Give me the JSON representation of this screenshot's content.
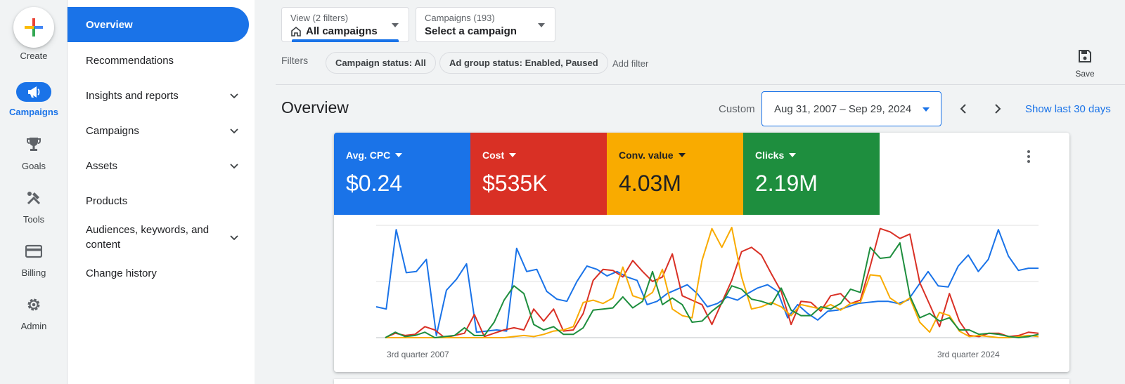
{
  "rail": {
    "create_label": "Create",
    "items": [
      {
        "label": "Campaigns",
        "icon": "megaphone-icon"
      },
      {
        "label": "Goals",
        "icon": "trophy-icon"
      },
      {
        "label": "Tools",
        "icon": "tools-icon"
      },
      {
        "label": "Billing",
        "icon": "credit-card-icon"
      },
      {
        "label": "Admin",
        "icon": "gear-icon"
      }
    ]
  },
  "nav": {
    "items": [
      {
        "label": "Overview"
      },
      {
        "label": "Recommendations"
      },
      {
        "label": "Insights and reports"
      },
      {
        "label": "Campaigns"
      },
      {
        "label": "Assets"
      },
      {
        "label": "Products"
      },
      {
        "label": "Audiences, keywords, and content"
      },
      {
        "label": "Change history"
      }
    ]
  },
  "header": {
    "view_small": "View (2 filters)",
    "view_value": "All campaigns",
    "campaigns_small": "Campaigns (193)",
    "campaigns_value": "Select a campaign"
  },
  "filters": {
    "label": "Filters",
    "chips": [
      "Campaign status: All",
      "Ad group status: Enabled, Paused"
    ],
    "add_filter": "Add filter",
    "save_label": "Save"
  },
  "overview": {
    "title": "Overview",
    "custom_label": "Custom",
    "date_range": "Aug 31, 2007 – Sep 29, 2024",
    "show_last": "Show last 30 days"
  },
  "metrics": [
    {
      "name": "Avg. CPC",
      "value": "$0.24",
      "color": "#1a73e8",
      "text_color": "#ffffff"
    },
    {
      "name": "Cost",
      "value": "$535K",
      "color": "#d93025",
      "text_color": "#ffffff"
    },
    {
      "name": "Conv. value",
      "value": "4.03M",
      "color": "#f9ab00",
      "text_color": "#202124"
    },
    {
      "name": "Clicks",
      "value": "2.19M",
      "color": "#1e8e3e",
      "text_color": "#ffffff"
    }
  ],
  "chart_data": {
    "type": "line",
    "x_start_label": "3rd quarter 2007",
    "x_end_label": "3rd quarter 2024",
    "grid": true,
    "series": [
      {
        "name": "Avg. CPC",
        "color": "#1a73e8",
        "values": [
          0.28,
          0.26,
          0.98,
          0.59,
          0.6,
          0.71,
          0.02,
          0.43,
          0.53,
          0.67,
          0.05,
          0.06,
          0.07,
          0.06,
          0.81,
          0.6,
          0.62,
          0.42,
          0.35,
          0.33,
          0.51,
          0.65,
          0.62,
          0.56,
          0.6,
          0.55,
          0.52,
          0.3,
          0.33,
          0.4,
          0.44,
          0.48,
          0.4,
          0.28,
          0.31,
          0.37,
          0.34,
          0.4,
          0.45,
          0.48,
          0.42,
          0.18,
          0.3,
          0.22,
          0.16,
          0.24,
          0.25,
          0.28,
          0.31,
          0.32,
          0.33,
          0.33,
          0.31,
          0.34,
          0.47,
          0.6,
          0.47,
          0.46,
          0.65,
          0.75,
          0.6,
          0.71,
          0.98,
          0.74,
          0.61,
          0.63,
          0.63
        ]
      },
      {
        "name": "Cost",
        "color": "#d93025",
        "values": [
          0.0,
          0.04,
          0.02,
          0.03,
          0.1,
          0.07,
          0.0,
          0.02,
          0.04,
          0.21,
          0.01,
          0.04,
          0.07,
          0.09,
          0.07,
          0.26,
          0.15,
          0.26,
          0.06,
          0.07,
          0.22,
          0.52,
          0.62,
          0.61,
          0.55,
          0.7,
          0.6,
          0.51,
          0.55,
          0.76,
          0.38,
          0.34,
          0.3,
          0.12,
          0.32,
          0.52,
          0.78,
          0.82,
          0.75,
          0.58,
          0.42,
          0.12,
          0.33,
          0.32,
          0.24,
          0.38,
          0.4,
          0.31,
          0.34,
          0.65,
          0.99,
          0.96,
          0.9,
          0.94,
          0.5,
          0.3,
          0.1,
          0.4,
          0.15,
          0.02,
          0.01,
          0.04,
          0.04,
          0.01,
          0.02,
          0.05,
          0.04
        ]
      },
      {
        "name": "Conv. value",
        "color": "#f9ab00",
        "values": [
          0.0,
          0.0,
          0.0,
          0.0,
          0.0,
          0.0,
          0.0,
          0.0,
          0.0,
          0.0,
          0.0,
          0.0,
          0.0,
          0.01,
          0.02,
          0.01,
          0.03,
          0.06,
          0.07,
          0.1,
          0.32,
          0.34,
          0.31,
          0.36,
          0.64,
          0.38,
          0.35,
          0.41,
          0.62,
          0.26,
          0.2,
          0.18,
          0.7,
          0.99,
          0.82,
          1.0,
          0.55,
          0.26,
          0.28,
          0.32,
          0.28,
          0.2,
          0.3,
          0.28,
          0.26,
          0.3,
          0.25,
          0.31,
          0.32,
          0.57,
          0.56,
          0.36,
          0.3,
          0.36,
          0.14,
          0.05,
          0.23,
          0.2,
          0.06,
          0.01,
          0.02,
          0.01,
          0.0,
          0.0,
          0.01,
          0.02,
          0.01
        ]
      },
      {
        "name": "Clicks",
        "color": "#1e8e3e",
        "values": [
          0.0,
          0.05,
          0.01,
          0.02,
          0.05,
          0.0,
          0.01,
          0.02,
          0.09,
          0.02,
          0.02,
          0.14,
          0.34,
          0.47,
          0.4,
          0.12,
          0.07,
          0.1,
          0.03,
          0.03,
          0.09,
          0.25,
          0.26,
          0.27,
          0.37,
          0.27,
          0.33,
          0.6,
          0.3,
          0.36,
          0.3,
          0.14,
          0.15,
          0.24,
          0.31,
          0.47,
          0.44,
          0.35,
          0.33,
          0.3,
          0.45,
          0.25,
          0.2,
          0.2,
          0.28,
          0.26,
          0.31,
          0.44,
          0.41,
          0.82,
          0.72,
          0.73,
          0.86,
          0.38,
          0.18,
          0.22,
          0.15,
          0.18,
          0.07,
          0.07,
          0.03,
          0.04,
          0.03,
          0.01,
          0.0,
          0.01,
          0.03
        ]
      }
    ]
  }
}
